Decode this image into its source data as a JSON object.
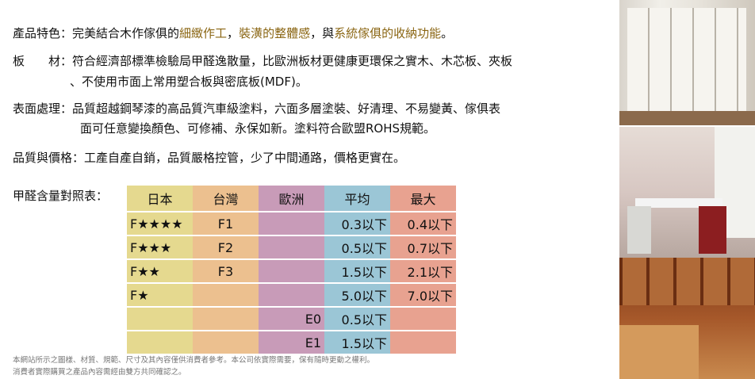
{
  "features": {
    "label": "產品特色：",
    "text_parts": [
      "完美結合木作傢俱的",
      "細緻作工",
      "，",
      "裝潢的整體感",
      "，與",
      "系統傢俱的收納功能",
      "。"
    ]
  },
  "material": {
    "label": "板　　材：",
    "line1": "符合經濟部標準檢驗局甲醛逸散量，比歐洲板材更健康更環保之實木、木芯板、夾板",
    "line2": "、不使用市面上常用塑合板與密底板(MDF)。"
  },
  "surface": {
    "label": "表面處理：",
    "line1": "品質超越鋼琴漆的高品質汽車級塗料，六面多層塗裝、好清理、不易變黃、傢俱表",
    "line2": "面可任意變換顏色、可修補、永保如新。塗料符合歐盟ROHS規範。"
  },
  "quality": {
    "label": "品質與價格：",
    "text": "工產自產自銷，品質嚴格控管，少了中間通路，價格更實在。"
  },
  "table": {
    "label": "甲醛含量對照表：",
    "headers": [
      "日本",
      "台灣",
      "歐洲",
      "平均",
      "最大"
    ],
    "rows": [
      [
        "F★★★★",
        "F1",
        "",
        "0.3以下",
        "0.4以下"
      ],
      [
        "F★★★",
        "F2",
        "",
        "0.5以下",
        "0.7以下"
      ],
      [
        "F★★",
        "F3",
        "",
        "1.5以下",
        "2.1以下"
      ],
      [
        "F★",
        "",
        "",
        "5.0以下",
        "7.0以下"
      ],
      [
        "",
        "",
        "E0",
        "0.5以下",
        ""
      ],
      [
        "",
        "",
        "E1",
        "1.5以下",
        ""
      ]
    ],
    "colors": [
      "#e5d98f",
      "#ecc08f",
      "#c89bb8",
      "#9bc6d6",
      "#e8a290"
    ]
  },
  "footer": {
    "line1": "本網站所示之圖樣、材質、規範、尺寸及其內容僅供消費者參考。本公司依實際需要，保有隨時更動之權利。",
    "line2": "消費者實際購買之產品內容需經由雙方共同確認之。"
  },
  "accent_color": "#8a6512"
}
